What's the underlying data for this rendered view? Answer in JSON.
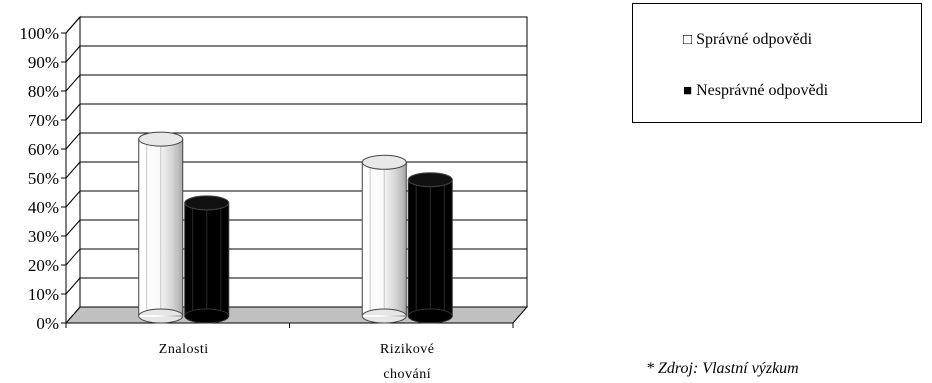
{
  "chart_data": {
    "type": "bar",
    "categories": [
      "Znalosti",
      "Rizikové chování"
    ],
    "category_lines": [
      [
        "Znalosti"
      ],
      [
        "Rizikové",
        "chování"
      ]
    ],
    "series": [
      {
        "name": "Správné odpovědi",
        "values": [
          61,
          53
        ],
        "color": "#f2f2f2"
      },
      {
        "name": "Nesprávné odpovědi",
        "values": [
          39,
          47
        ],
        "color": "#000000"
      }
    ],
    "yticks": [
      "0%",
      "10%",
      "20%",
      "30%",
      "40%",
      "50%",
      "60%",
      "70%",
      "80%",
      "90%",
      "100%"
    ],
    "ylim": [
      0,
      100
    ],
    "grid": true,
    "legend_position": "top-right",
    "legend": [
      {
        "marker": "□",
        "label": "Správné odpovědi"
      },
      {
        "marker": "■",
        "label": "Nesprávné odpovědi"
      }
    ],
    "floor_color": "#c0c0c0"
  },
  "source_note": "* Zdroj: Vlastní výzkum"
}
